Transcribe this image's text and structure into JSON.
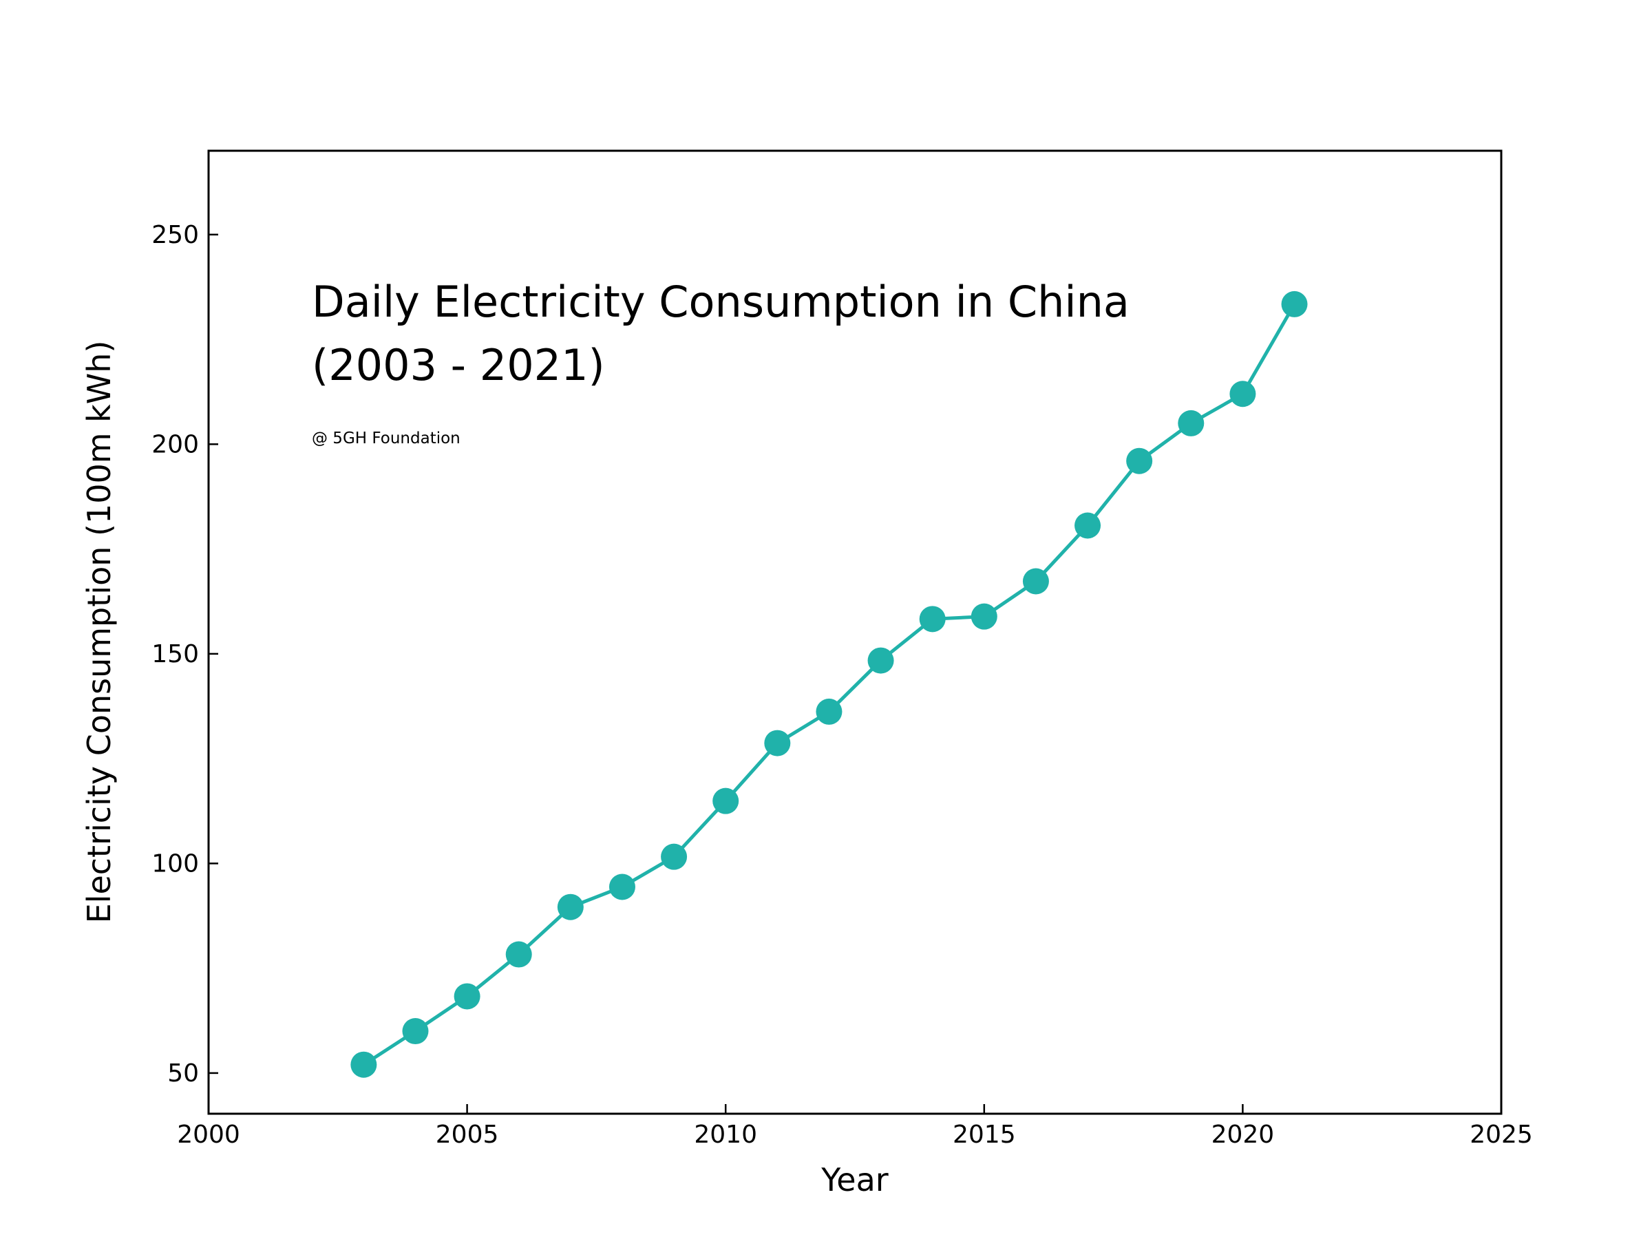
{
  "chart_data": {
    "type": "line",
    "title_lines": [
      "Daily Electricity Consumption in China",
      "(2003 - 2021)"
    ],
    "annotation": "@ 5GH Foundation",
    "xlabel": "Year",
    "ylabel": "Electricity Consumption (100m kWh)",
    "xlim": [
      2000,
      2025
    ],
    "ylim": [
      40.3,
      270
    ],
    "x_ticks": [
      2000,
      2005,
      2010,
      2015,
      2020,
      2025
    ],
    "y_ticks": [
      50,
      100,
      150,
      200,
      250
    ],
    "grid": false,
    "legend": "none",
    "color": "#20B2AA",
    "series": [
      {
        "x": [
          2003,
          2004,
          2005,
          2006,
          2007,
          2008,
          2009,
          2010,
          2011,
          2012,
          2013,
          2014,
          2015,
          2016,
          2017,
          2018,
          2019,
          2020,
          2021
        ],
        "y": [
          52.0,
          60.0,
          68.3,
          78.3,
          89.6,
          94.4,
          101.6,
          114.9,
          128.7,
          136.2,
          148.4,
          158.3,
          158.9,
          167.3,
          180.6,
          196.0,
          205.0,
          212.0,
          233.4
        ]
      }
    ]
  }
}
